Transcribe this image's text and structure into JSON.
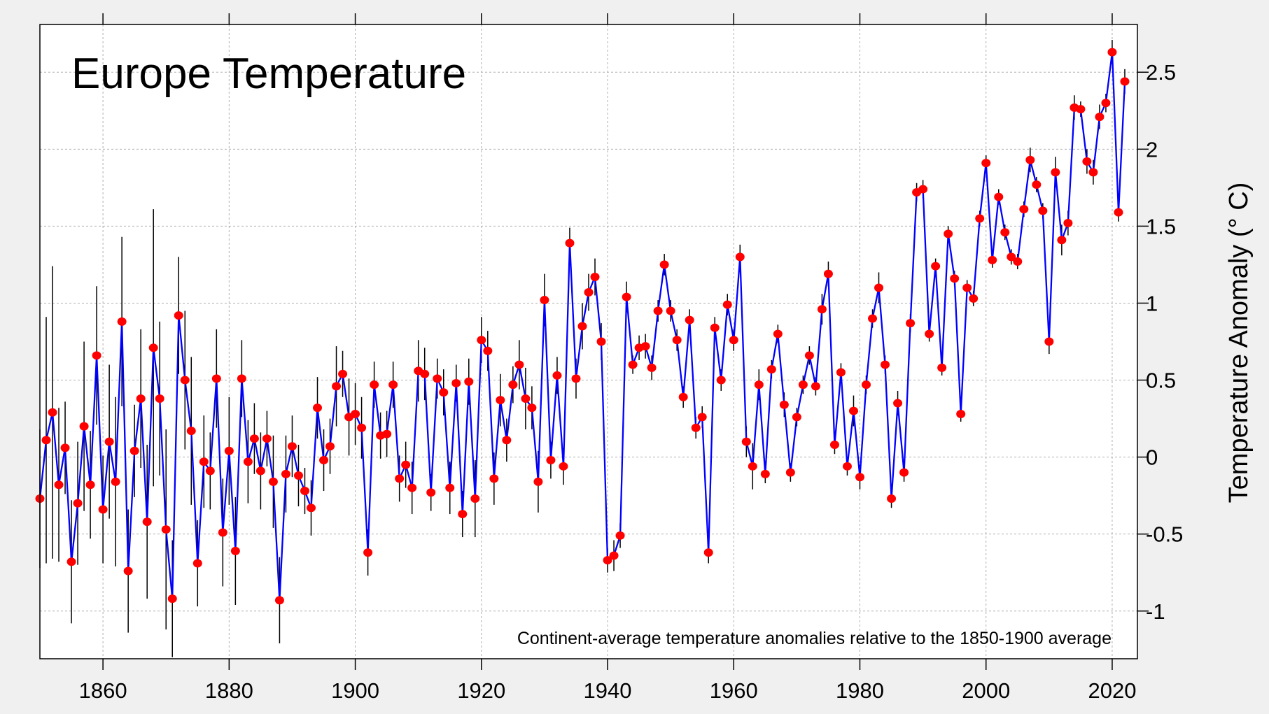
{
  "chart_data": {
    "type": "line",
    "title": "Europe Temperature",
    "annotation": "Continent-average temperature anomalies relative to the 1850-1900 average",
    "xlabel": "",
    "ylabel": "Temperature Anomaly (° C)",
    "xlim": [
      1850,
      2024
    ],
    "ylim": [
      -1.31,
      2.81
    ],
    "x_ticks": [
      1860,
      1880,
      1900,
      1920,
      1940,
      1960,
      1980,
      2000,
      2020
    ],
    "y_ticks": [
      -1,
      -0.5,
      0,
      0.5,
      1,
      1.5,
      2,
      2.5
    ],
    "y_tick_labels": [
      "-1",
      "-0.5",
      "0",
      "0.5",
      "1",
      "1.5",
      "2",
      "2.5"
    ],
    "y_axis_side": "right",
    "grid": true,
    "colors": {
      "line": "#0000ff",
      "marker": "#ff0000",
      "error_bar": "#000000",
      "grid": "#b0b0b0",
      "background": "#ffffff",
      "outer_background": "#f0f0f0"
    },
    "x_start": 1850,
    "series": [
      {
        "values": [
          -0.27,
          0.11,
          0.29,
          -0.18,
          0.06,
          -0.68,
          -0.3,
          0.2,
          -0.18,
          0.66,
          -0.34,
          0.1,
          -0.16,
          0.88,
          -0.74,
          0.04,
          0.38,
          -0.42,
          0.71,
          0.38,
          -0.47,
          -0.92,
          0.92,
          0.5,
          0.17,
          -0.69,
          -0.03,
          -0.09,
          0.51,
          -0.49,
          0.04,
          -0.61,
          0.51,
          -0.03,
          0.12,
          -0.09,
          0.12,
          -0.16,
          -0.93,
          -0.11,
          0.07,
          -0.12,
          -0.22,
          -0.33,
          0.32,
          -0.02,
          0.07,
          0.46,
          0.54,
          0.26,
          0.28,
          0.19,
          -0.62,
          0.47,
          0.14,
          0.15,
          0.47,
          -0.14,
          -0.05,
          -0.2,
          0.56,
          0.54,
          -0.23,
          0.51,
          0.42,
          -0.2,
          0.48,
          -0.37,
          0.49,
          -0.27,
          0.76,
          0.69,
          -0.14,
          0.37,
          0.11,
          0.47,
          0.6,
          0.38,
          0.32,
          -0.16,
          1.02,
          -0.02,
          0.53,
          -0.06,
          1.39,
          0.51,
          0.85,
          1.07,
          1.17,
          0.75,
          -0.67,
          -0.64,
          -0.51,
          1.04,
          0.6,
          0.71,
          0.72,
          0.58,
          0.95,
          1.25,
          0.95,
          0.76,
          0.39,
          0.89,
          0.19,
          0.26,
          -0.62,
          0.84,
          0.5,
          0.99,
          0.76,
          1.3,
          0.1,
          -0.06,
          0.47,
          -0.11,
          0.57,
          0.8,
          0.34,
          -0.1,
          0.26,
          0.47,
          0.66,
          0.46,
          0.96,
          1.19,
          0.08,
          0.55,
          -0.06,
          0.3,
          -0.13,
          0.47,
          0.9,
          1.1,
          0.6,
          -0.27,
          0.35,
          -0.1,
          0.87,
          1.72,
          1.74,
          0.8,
          1.24,
          0.58,
          1.45,
          1.16,
          0.28,
          1.1,
          1.03,
          1.55,
          1.91,
          1.28,
          1.69,
          1.46,
          1.3,
          1.27,
          1.61,
          1.93,
          1.77,
          1.6,
          0.75,
          1.85,
          1.41,
          1.52,
          2.27,
          2.26,
          1.92,
          1.85,
          2.21,
          2.3,
          2.63,
          1.59,
          2.44
        ],
        "uncertainty": [
          0.45,
          0.8,
          0.95,
          0.5,
          0.3,
          0.4,
          0.4,
          0.55,
          0.35,
          0.45,
          0.35,
          0.5,
          0.55,
          0.55,
          0.4,
          0.3,
          0.45,
          0.5,
          0.9,
          0.5,
          0.65,
          0.38,
          0.38,
          0.45,
          0.48,
          0.28,
          0.3,
          0.25,
          0.32,
          0.35,
          0.35,
          0.35,
          0.25,
          0.27,
          0.23,
          0.25,
          0.18,
          0.3,
          0.28,
          0.25,
          0.2,
          0.2,
          0.15,
          0.18,
          0.2,
          0.2,
          0.18,
          0.26,
          0.15,
          0.25,
          0.2,
          0.2,
          0.15,
          0.15,
          0.15,
          0.15,
          0.15,
          0.15,
          0.15,
          0.17,
          0.2,
          0.17,
          0.12,
          0.13,
          0.15,
          0.17,
          0.12,
          0.15,
          0.15,
          0.25,
          0.15,
          0.13,
          0.17,
          0.17,
          0.14,
          0.12,
          0.16,
          0.2,
          0.14,
          0.2,
          0.17,
          0.12,
          0.12,
          0.12,
          0.1,
          0.13,
          0.15,
          0.12,
          0.12,
          0.12,
          0.08,
          0.1,
          0.08,
          0.1,
          0.06,
          0.08,
          0.08,
          0.08,
          0.07,
          0.07,
          0.07,
          0.07,
          0.07,
          0.07,
          0.07,
          0.07,
          0.07,
          0.07,
          0.07,
          0.07,
          0.07,
          0.08,
          0.1,
          0.15,
          0.1,
          0.06,
          0.06,
          0.06,
          0.08,
          0.06,
          0.06,
          0.06,
          0.06,
          0.06,
          0.1,
          0.08,
          0.06,
          0.06,
          0.06,
          0.1,
          0.08,
          0.06,
          0.06,
          0.1,
          0.06,
          0.06,
          0.08,
          0.06,
          0.06,
          0.06,
          0.06,
          0.05,
          0.05,
          0.05,
          0.05,
          0.05,
          0.05,
          0.05,
          0.05,
          0.05,
          0.05,
          0.05,
          0.05,
          0.05,
          0.05,
          0.05,
          0.05,
          0.08,
          0.05,
          0.05,
          0.08,
          0.1,
          0.1,
          0.08,
          0.08,
          0.05,
          0.08,
          0.08,
          0.08,
          0.06,
          0.08,
          0.06,
          0.08
        ]
      }
    ]
  }
}
